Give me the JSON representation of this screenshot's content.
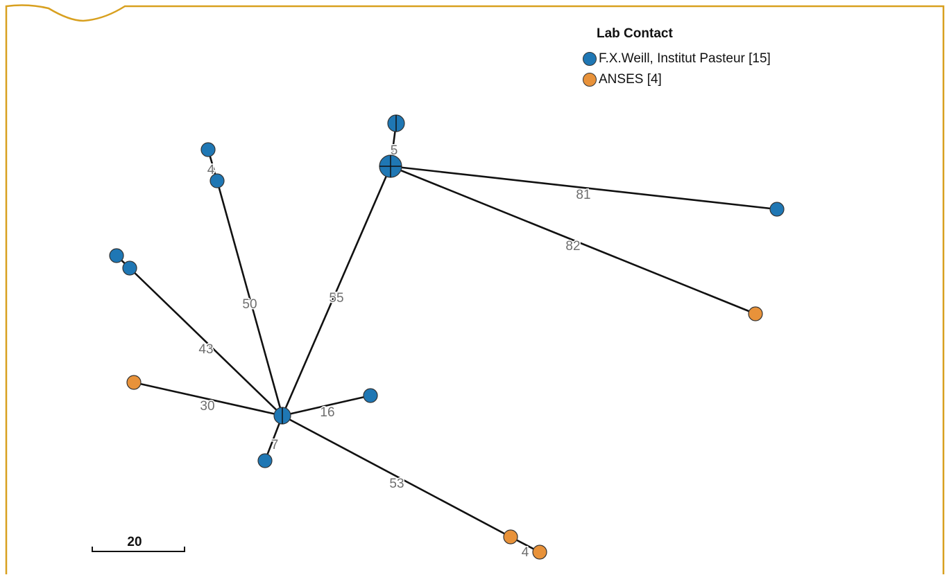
{
  "colors": {
    "border": "#d8a01f",
    "lab1": "#1f77b4",
    "lab2": "#e8923a"
  },
  "legend": {
    "title": "Lab Contact",
    "items": [
      {
        "label": "F.X.Weill, Institut Pasteur [15]",
        "color": "#1f77b4"
      },
      {
        "label": "ANSES [4]",
        "color": "#e8923a"
      }
    ]
  },
  "scale_bar": {
    "label": "20"
  },
  "edge_labels": [
    "5",
    "4",
    "81",
    "82",
    "50",
    "55",
    "43",
    "30",
    "16",
    "7",
    "53",
    "4"
  ]
}
